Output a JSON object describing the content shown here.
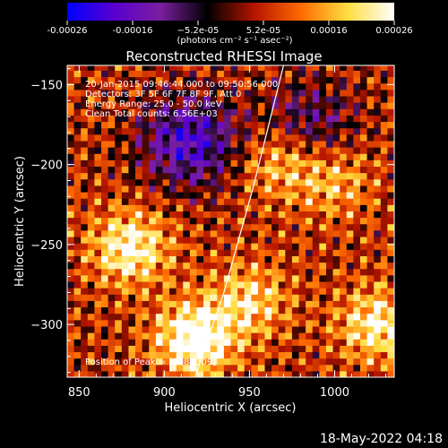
{
  "chart_data": {
    "type": "heatmap",
    "title": "Reconstructed RHESSI Image",
    "xlabel": "Heliocentric X (arcsec)",
    "ylabel": "Heliocentric Y (arcsec)",
    "xlim": [
      843,
      1035
    ],
    "ylim": [
      -333,
      -138
    ],
    "x_ticks": [
      850,
      900,
      950,
      1000
    ],
    "y_ticks": [
      -150,
      -200,
      -250,
      -300
    ],
    "colorbar": {
      "units": "(photons cm⁻² s⁻¹ asec⁻²)",
      "range": [
        -0.00026,
        0.00026
      ],
      "ticks": [
        "-0.00026",
        "-0.00016",
        "−5.2e-05",
        "5.2e-05",
        "0.00016",
        "0.00026"
      ],
      "colors": [
        "#0000ff",
        "#5a00cf",
        "#7a1fa0",
        "#000000",
        "#b41400",
        "#ff6a00",
        "#ffdd40",
        "#ffffff"
      ]
    },
    "annotations": [
      "20-Jan-2015 09:46:44.000 to 09:50:56.000",
      "Detectors: 3F 5F 6F 7F 8F 9F, Att 0",
      "Energy Range: 25.0 - 50.0 keV",
      "Clean    Total counts: 6.56E+03"
    ],
    "peak_label": "Position of Peak = [918,-309]",
    "bright_sources": [
      {
        "x": 918,
        "y": -309,
        "value": 0.00026
      },
      {
        "x": 880,
        "y": -252,
        "value": 0.00021
      },
      {
        "x": 1025,
        "y": -300,
        "value": 0.00019
      },
      {
        "x": 950,
        "y": -285,
        "value": 0.00015
      },
      {
        "x": 968,
        "y": -198,
        "value": 0.00014
      },
      {
        "x": 1000,
        "y": -210,
        "value": 0.00012
      }
    ],
    "dim_sources": [
      {
        "x": 915,
        "y": -185,
        "value": -0.00022
      },
      {
        "x": 985,
        "y": -175,
        "value": -0.00013
      }
    ],
    "limb": {
      "x": [
        918,
        935,
        952,
        970
      ],
      "y": [
        -333,
        -280,
        -215,
        -138
      ]
    }
  },
  "footer_date": "18-May-2022 04:18"
}
